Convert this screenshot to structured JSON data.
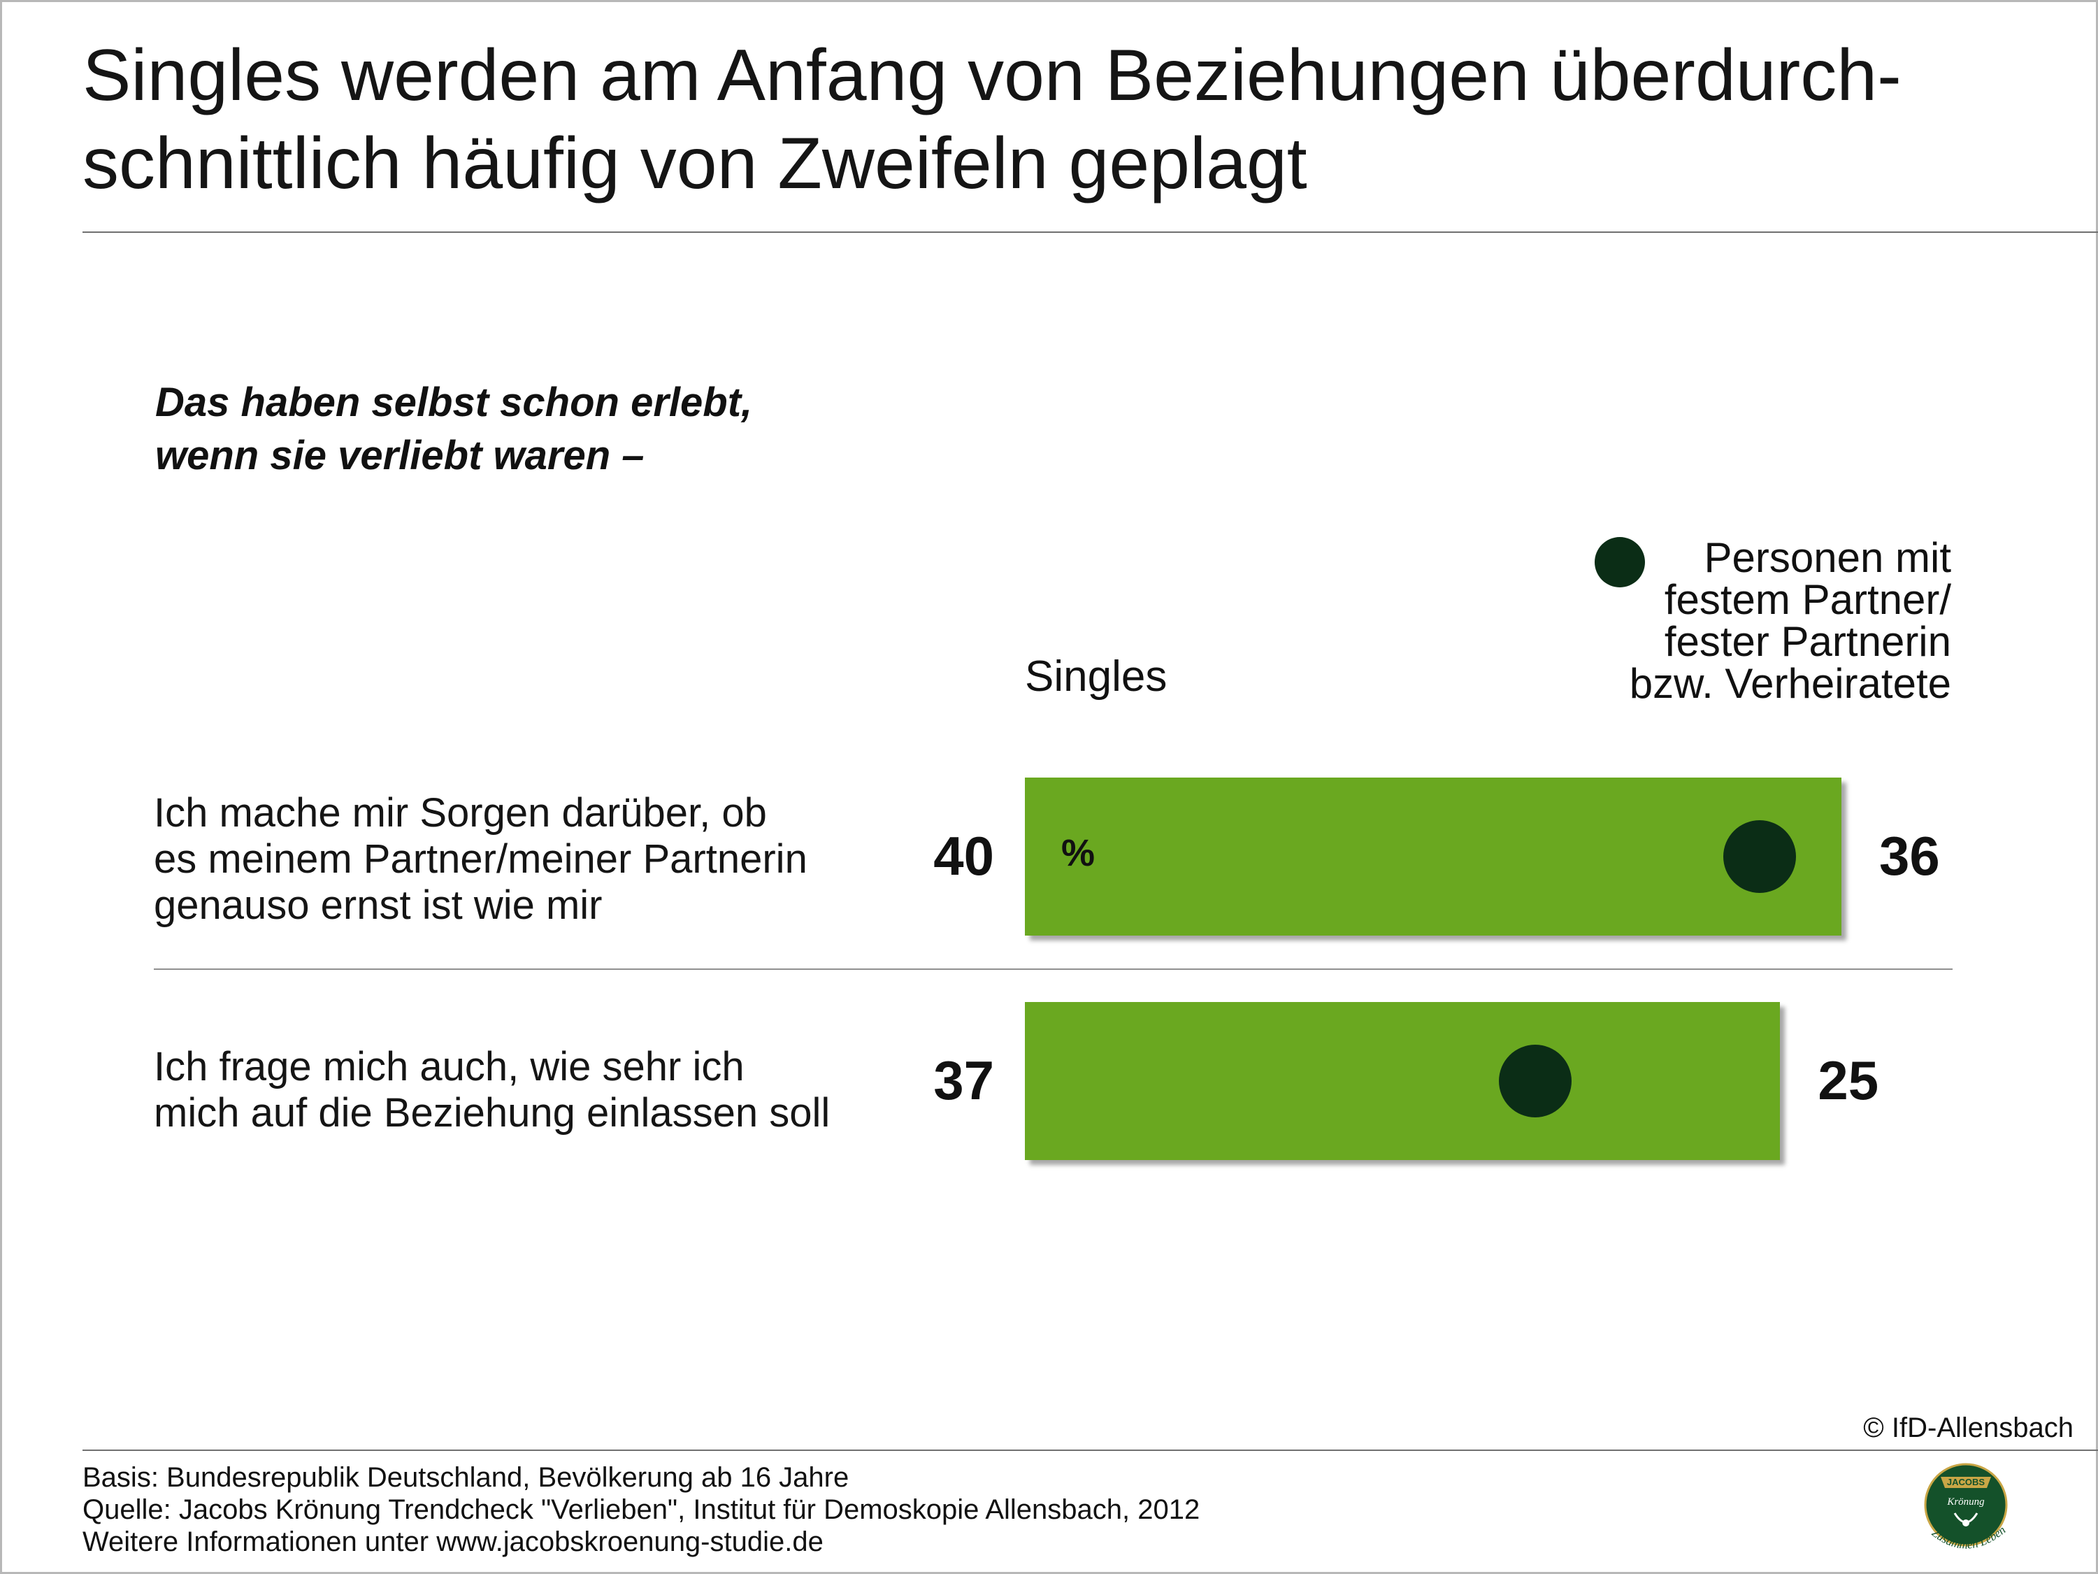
{
  "title_line1": "Singles werden am Anfang von Beziehungen überdurch-",
  "title_line2": "schnittlich häufig von Zweifeln geplagt",
  "question_line1": "Das haben selbst schon erlebt,",
  "question_line2": "wenn sie verliebt waren –",
  "legend_singles": "Singles",
  "legend_partner_line1": "Personen mit",
  "legend_partner_line2": "festem Partner/",
  "legend_partner_line3": "fester Partnerin",
  "legend_partner_line4": "bzw. Verheiratete",
  "percent_sign": "%",
  "colors": {
    "bar": "#6aa820",
    "dot": "#0b2d16"
  },
  "chart_data": {
    "type": "bar",
    "orientation": "horizontal",
    "unit": "%",
    "categories": [
      [
        "Ich mache mir Sorgen darüber, ob",
        "es meinem Partner/meiner Partnerin",
        "genauso ernst ist wie mir"
      ],
      [
        "Ich frage mich auch, wie sehr ich",
        "mich auf die Beziehung einlassen soll"
      ]
    ],
    "series": [
      {
        "name": "Singles",
        "mark": "bar",
        "values": [
          40,
          37
        ]
      },
      {
        "name": "Personen mit festem Partner/fester Partnerin bzw. Verheiratete",
        "mark": "dot",
        "values": [
          36,
          25
        ]
      }
    ],
    "labels_left": [
      "40",
      "37"
    ],
    "labels_right": [
      "36",
      "25"
    ]
  },
  "copyright": "© IfD-Allensbach",
  "footer_line1": "Basis: Bundesrepublik Deutschland, Bevölkerung ab 16 Jahre",
  "footer_line2": "Quelle: Jacobs Krönung Trendcheck \"Verlieben\", Institut für Demoskopie Allensbach, 2012",
  "footer_line3": "Weitere Informationen unter www.jacobskroenung-studie.de",
  "logo": {
    "brand": "JACOBS",
    "product": "Krönung",
    "slogan": "Zusammen Leben"
  }
}
